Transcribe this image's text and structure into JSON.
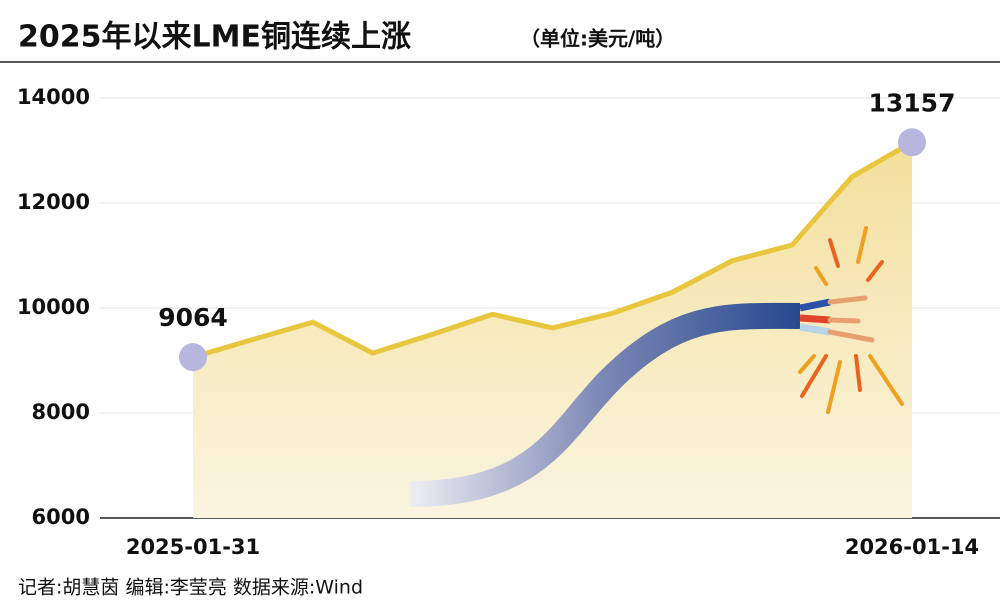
{
  "chart_data": {
    "type": "line",
    "title": "2025年以来LME铜连续上涨",
    "subtitle": "（单位:美元/吨）",
    "x": [
      "2025-01-31",
      null,
      null,
      null,
      null,
      null,
      null,
      null,
      null,
      null,
      null,
      null,
      "2026-01-14"
    ],
    "series": [
      {
        "name": null,
        "color": "#e8c63e",
        "values": [
          9064,
          9400,
          9730,
          9140,
          9500,
          9880,
          9620,
          9900,
          10300,
          10900,
          11200,
          12500,
          13157
        ]
      }
    ],
    "ylim": [
      6000,
      14000
    ],
    "yticks": [
      6000,
      8000,
      10000,
      12000,
      14000
    ],
    "grid": true,
    "area": true,
    "data_labels": "ends",
    "footer": "记者:胡慧茵  编辑:李莹亮  数据来源:Wind"
  }
}
